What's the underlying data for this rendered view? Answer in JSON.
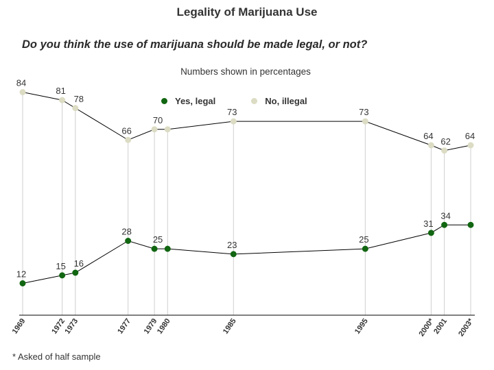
{
  "header": {
    "title": "Legality of Marijuana Use",
    "question": "Do you think the use of marijuana should be made legal, or not?",
    "subtitle": "Numbers shown in percentages"
  },
  "legend": {
    "items": [
      {
        "label": "Yes, legal",
        "color": "#116611"
      },
      {
        "label": "No, illegal",
        "color": "#dcdcc4"
      }
    ]
  },
  "footnote": "* Asked of half sample",
  "colors": {
    "yes_marker": "#116611",
    "no_marker": "#dcdcc4",
    "line": "#000000",
    "drop_line": "#cfcfcf"
  },
  "chart_data": {
    "type": "line",
    "title": "Legality of Marijuana Use",
    "xlabel": "",
    "ylabel": "",
    "x": [
      1969,
      1972,
      1973,
      1977,
      1979,
      1980,
      1985,
      1995,
      2000,
      2001,
      2003
    ],
    "categories": [
      "1969",
      "1972",
      "1973",
      "1977",
      "1979",
      "1980",
      "1985",
      "1995",
      "2000*",
      "2001",
      "2003*"
    ],
    "ylim": [
      0,
      100
    ],
    "series": [
      {
        "name": "Yes, legal",
        "values": [
          12,
          15,
          16,
          28,
          25,
          25,
          23,
          25,
          31,
          34,
          34
        ],
        "labels": [
          "12",
          "15",
          "16",
          "28",
          "25",
          "",
          "23",
          "25",
          "31",
          "34",
          ""
        ]
      },
      {
        "name": "No, illegal",
        "values": [
          84,
          81,
          78,
          66,
          70,
          70,
          73,
          73,
          64,
          62,
          64
        ],
        "labels": [
          "84",
          "81",
          "78",
          "66",
          "70",
          "",
          "73",
          "73",
          "64",
          "62",
          "64"
        ]
      }
    ]
  }
}
